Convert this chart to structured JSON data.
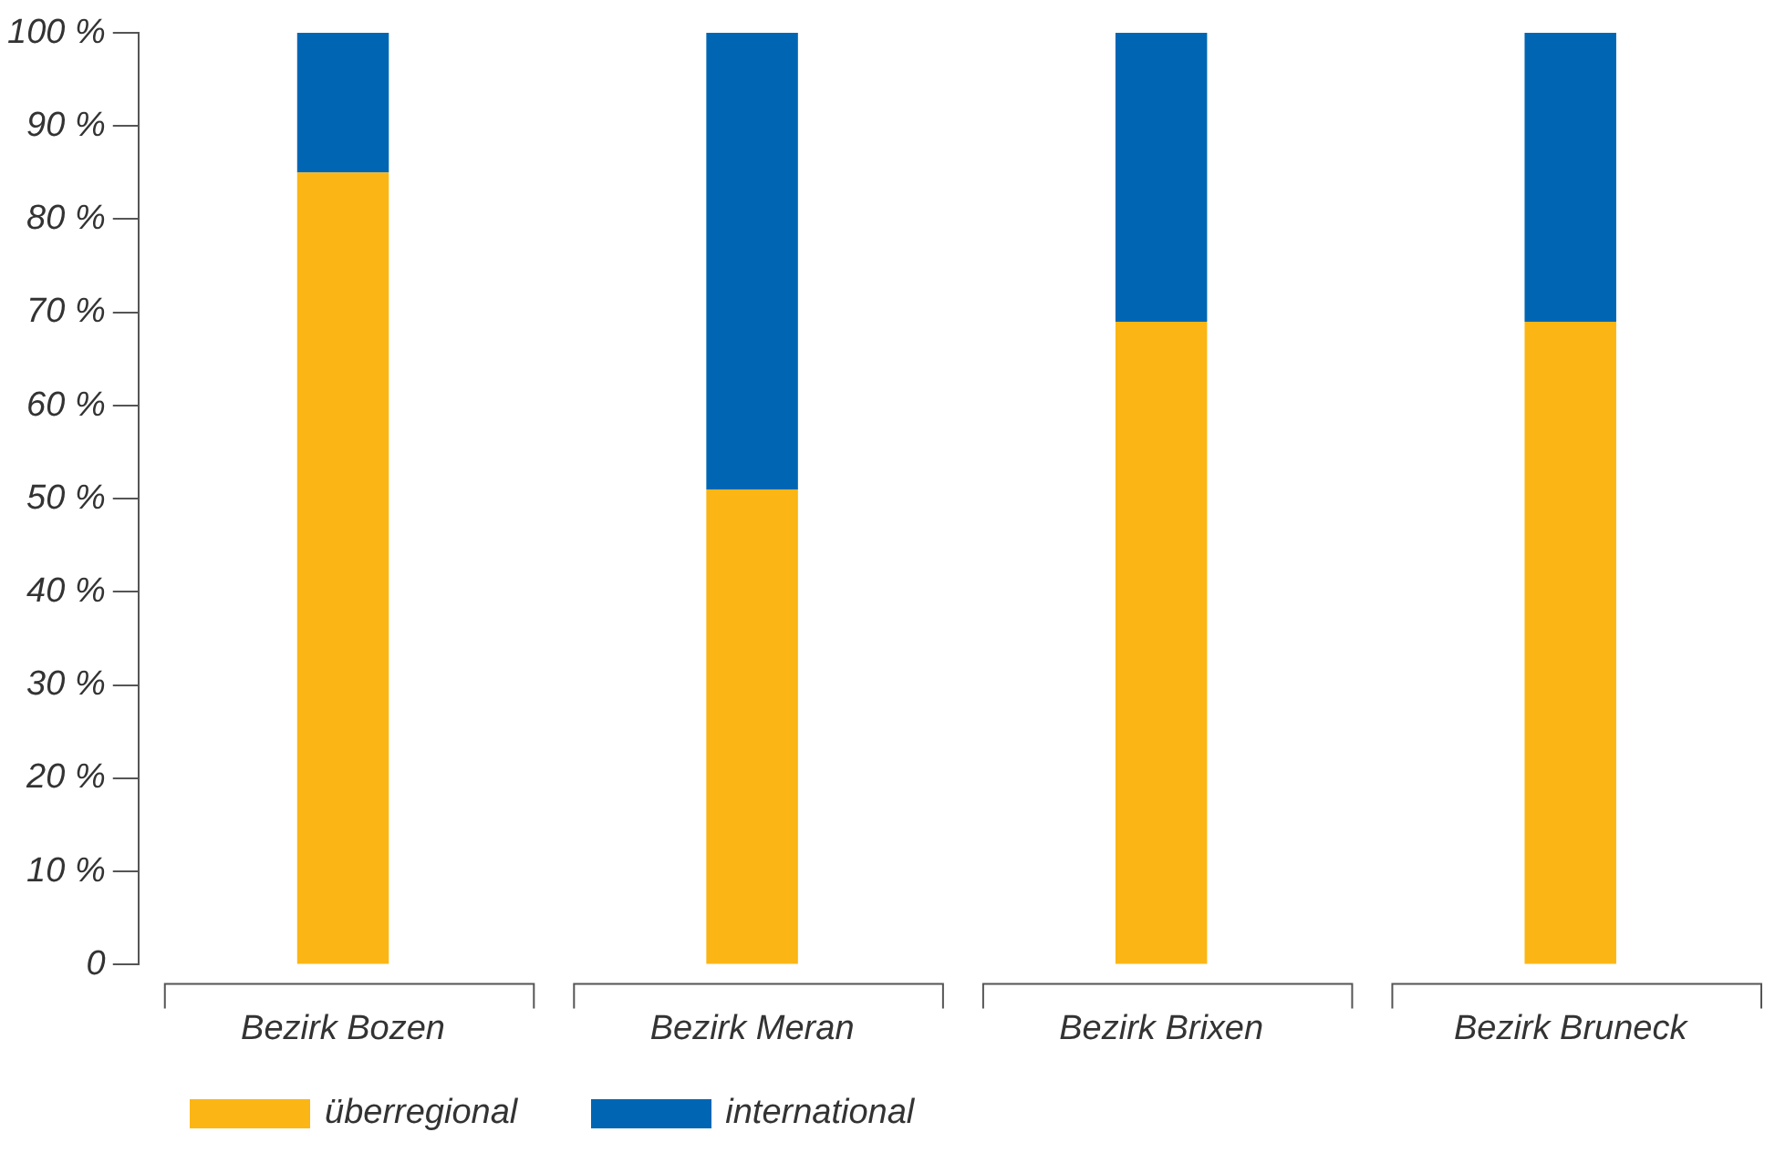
{
  "chart_data": {
    "type": "bar",
    "stacked": true,
    "categories": [
      "Bezirk Bozen",
      "Bezirk Meran",
      "Bezirk Brixen",
      "Bezirk Bruneck"
    ],
    "series": [
      {
        "name": "überregional",
        "color": "#fbb615",
        "values": [
          85,
          51,
          69,
          69
        ]
      },
      {
        "name": "international",
        "color": "#0066b3",
        "values": [
          15,
          49,
          31,
          31
        ]
      }
    ],
    "ylim": [
      0,
      100
    ],
    "yticks": [
      {
        "value": 0,
        "label": "0"
      },
      {
        "value": 10,
        "label": "10 %"
      },
      {
        "value": 20,
        "label": "20 %"
      },
      {
        "value": 30,
        "label": "30 %"
      },
      {
        "value": 40,
        "label": "40 %"
      },
      {
        "value": 50,
        "label": "50 %"
      },
      {
        "value": 60,
        "label": "60 %"
      },
      {
        "value": 70,
        "label": "70 %"
      },
      {
        "value": 80,
        "label": "80 %"
      },
      {
        "value": 90,
        "label": "90 %"
      },
      {
        "value": 100,
        "label": "100 %"
      }
    ],
    "grid": false,
    "legend": "bottom left"
  }
}
